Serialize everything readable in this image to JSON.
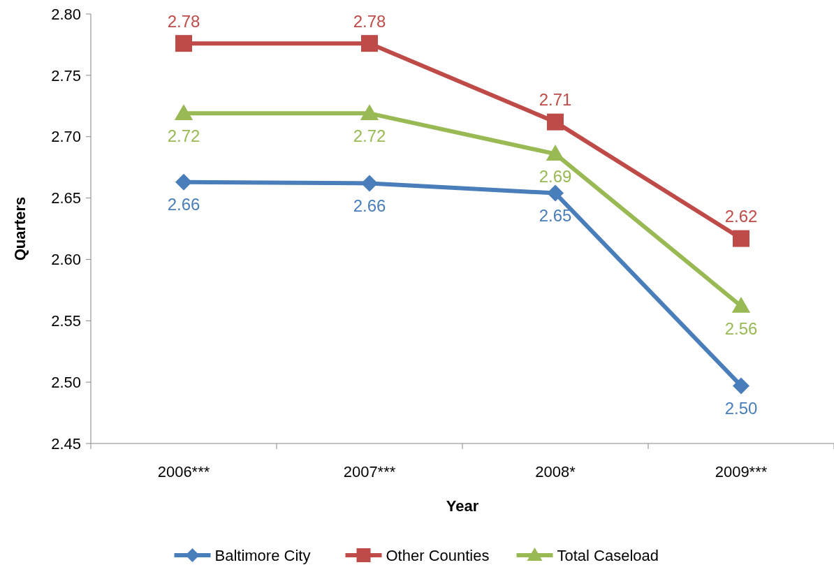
{
  "chart_data": {
    "type": "line",
    "xlabel": "Year",
    "ylabel": "Quarters",
    "categories": [
      "2006***",
      "2007***",
      "2008*",
      "2009***"
    ],
    "ylim": [
      2.45,
      2.8
    ],
    "yticks": [
      "2.45",
      "2.50",
      "2.55",
      "2.60",
      "2.65",
      "2.70",
      "2.75",
      "2.80"
    ],
    "grid": false,
    "legend": "bottom",
    "line_style": "solid",
    "series": [
      {
        "name": "Baltimore City",
        "color": "#4a7ebb",
        "marker": "diamond",
        "values": [
          2.663,
          2.662,
          2.654,
          2.497
        ],
        "value_labels": [
          "2.66",
          "2.66",
          "2.65",
          "2.50"
        ]
      },
      {
        "name": "Other Counties",
        "color": "#be4b48",
        "marker": "square",
        "values": [
          2.776,
          2.776,
          2.712,
          2.617
        ],
        "value_labels": [
          "2.78",
          "2.78",
          "2.71",
          "2.62"
        ]
      },
      {
        "name": "Total Caseload",
        "color": "#98b954",
        "marker": "triangle",
        "values": [
          2.719,
          2.719,
          2.686,
          2.562
        ],
        "value_labels": [
          "2.72",
          "2.72",
          "2.69",
          "2.56"
        ]
      }
    ]
  }
}
